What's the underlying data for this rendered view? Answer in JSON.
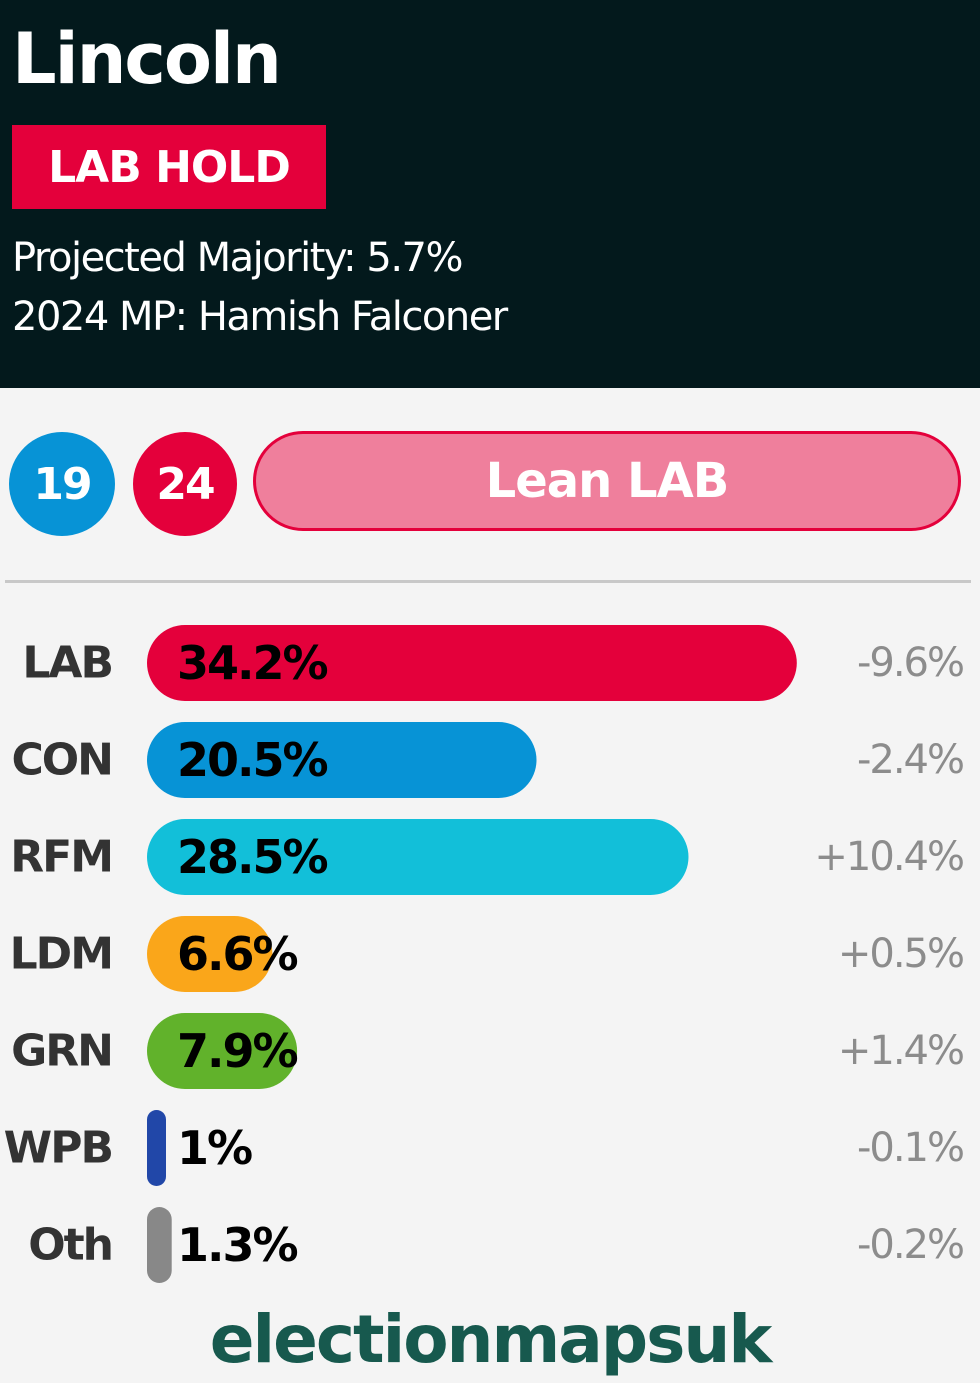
{
  "header": {
    "constituency": "Lincoln",
    "result_badge": "LAB HOLD",
    "majority": "Projected Majority: 5.7%",
    "mp": "2024 MP: Hamish Falconer"
  },
  "seat_scores": {
    "con": "19",
    "lab": "24"
  },
  "rating": "Lean LAB",
  "colors": {
    "header_bg": "#03191c",
    "badge": "#e4003b",
    "rating_fill": "#ef7f9c",
    "con_circle": "#0793d6",
    "lab_circle": "#e4003b",
    "branding": "#17594e"
  },
  "chart_data": {
    "type": "bar",
    "orientation": "horizontal",
    "categories": [
      "LAB",
      "CON",
      "RFM",
      "LDM",
      "GRN",
      "WPB",
      "Oth"
    ],
    "values": [
      34.2,
      20.5,
      28.5,
      6.6,
      7.9,
      1,
      1.3
    ],
    "value_labels": [
      "34.2%",
      "20.5%",
      "28.5%",
      "6.6%",
      "7.9%",
      "1%",
      "1.3%"
    ],
    "changes": [
      "-9.6%",
      "-2.4%",
      "+10.4%",
      "+0.5%",
      "+1.4%",
      "-0.1%",
      "-0.2%"
    ],
    "colors": [
      "#e4003b",
      "#0793d6",
      "#12bfd9",
      "#faa61a",
      "#61b22b",
      "#2147a8",
      "#888888"
    ],
    "unit": "%"
  },
  "footer": {
    "branding": "electionmapsuk"
  }
}
